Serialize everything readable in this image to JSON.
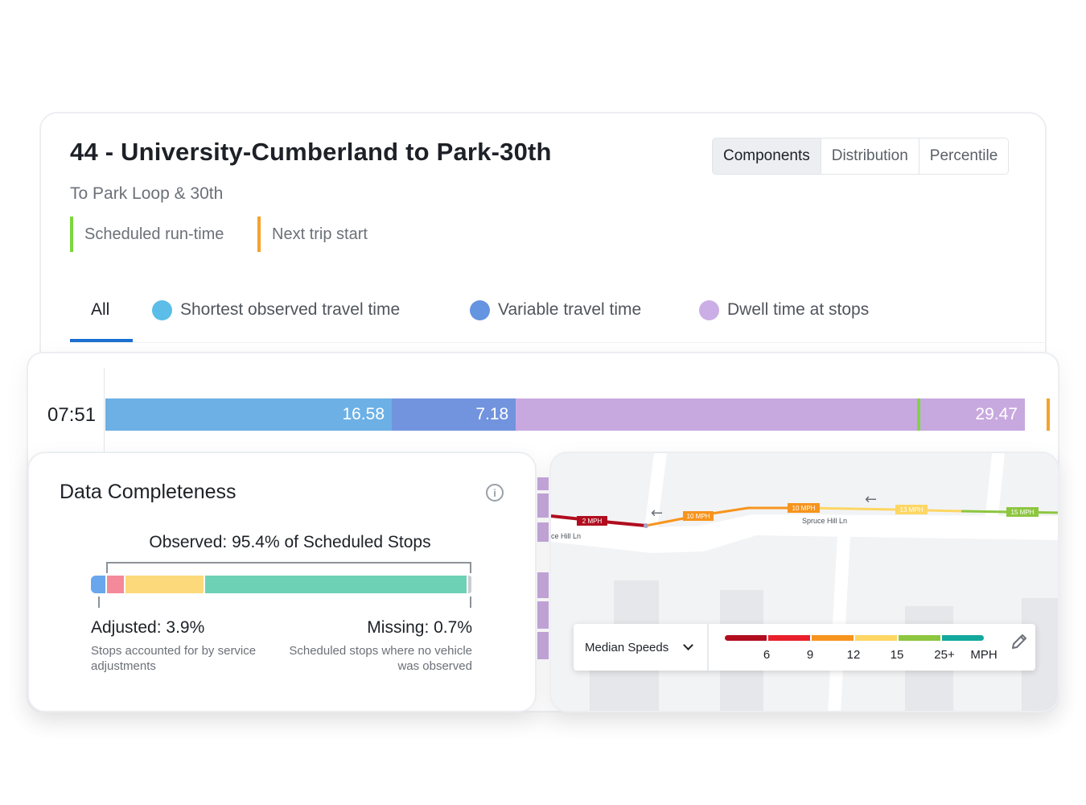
{
  "route": {
    "title": "44 - University-Cumberland to Park-30th",
    "subtitle": "To Park Loop & 30th"
  },
  "legend": [
    {
      "label": "Scheduled run-time",
      "color": "#7cd63f"
    },
    {
      "label": "Next trip start",
      "color": "#f5a22c"
    }
  ],
  "view_toggle": {
    "options": [
      "Components",
      "Distribution",
      "Percentile"
    ],
    "selected": "Components"
  },
  "tabs": [
    {
      "label": "All",
      "color": null,
      "active": true
    },
    {
      "label": "Shortest observed travel time",
      "color": "#5bbde8"
    },
    {
      "label": "Variable travel time",
      "color": "#6594e0"
    },
    {
      "label": "Dwell time at stops",
      "color": "#ccaee6"
    }
  ],
  "runtime_row": {
    "start_time": "07:51",
    "segments": [
      {
        "label": "16.58",
        "value": 16.58,
        "color": "#6cb0e5"
      },
      {
        "label": "7.18",
        "value": 7.18,
        "color": "#7294de"
      },
      {
        "label": "29.47",
        "value": 29.47,
        "color": "#c8a9df"
      }
    ],
    "scheduled_runtime": 47.0,
    "next_trip_start": 54.5
  },
  "data_completeness": {
    "title": "Data Completeness",
    "observed_label": "Observed: 95.4% of Scheduled Stops",
    "adjusted_label": "Adjusted: 3.9%",
    "adjusted_desc": "Stops accounted for by service adjustments",
    "missing_label": "Missing: 0.7%",
    "missing_desc": "Scheduled stops where no vehicle was observed",
    "bar": [
      {
        "value": 3.9,
        "color": "#6aa6ec"
      },
      {
        "value": 4.5,
        "color": "#f4899a"
      },
      {
        "value": 21.0,
        "color": "#fcd97a"
      },
      {
        "value": 69.9,
        "color": "#6dd1b5"
      },
      {
        "value": 0.7,
        "color": "#c9ccd0"
      }
    ]
  },
  "map": {
    "street_labels": [
      "Spruce Hill Ln",
      "ce Hill Ln"
    ],
    "speed_labels": [
      "2 MPH",
      "10 MPH",
      "10 MPH",
      "13 MPH",
      "15 MPH"
    ],
    "legend_title": "Median Speeds",
    "scale_ticks": [
      "6",
      "9",
      "12",
      "15",
      "25+"
    ],
    "unit": "MPH",
    "scale_colors": [
      "#b10d1f",
      "#e8202c",
      "#f7941d",
      "#fdd663",
      "#8dc63f",
      "#13a89e"
    ]
  }
}
